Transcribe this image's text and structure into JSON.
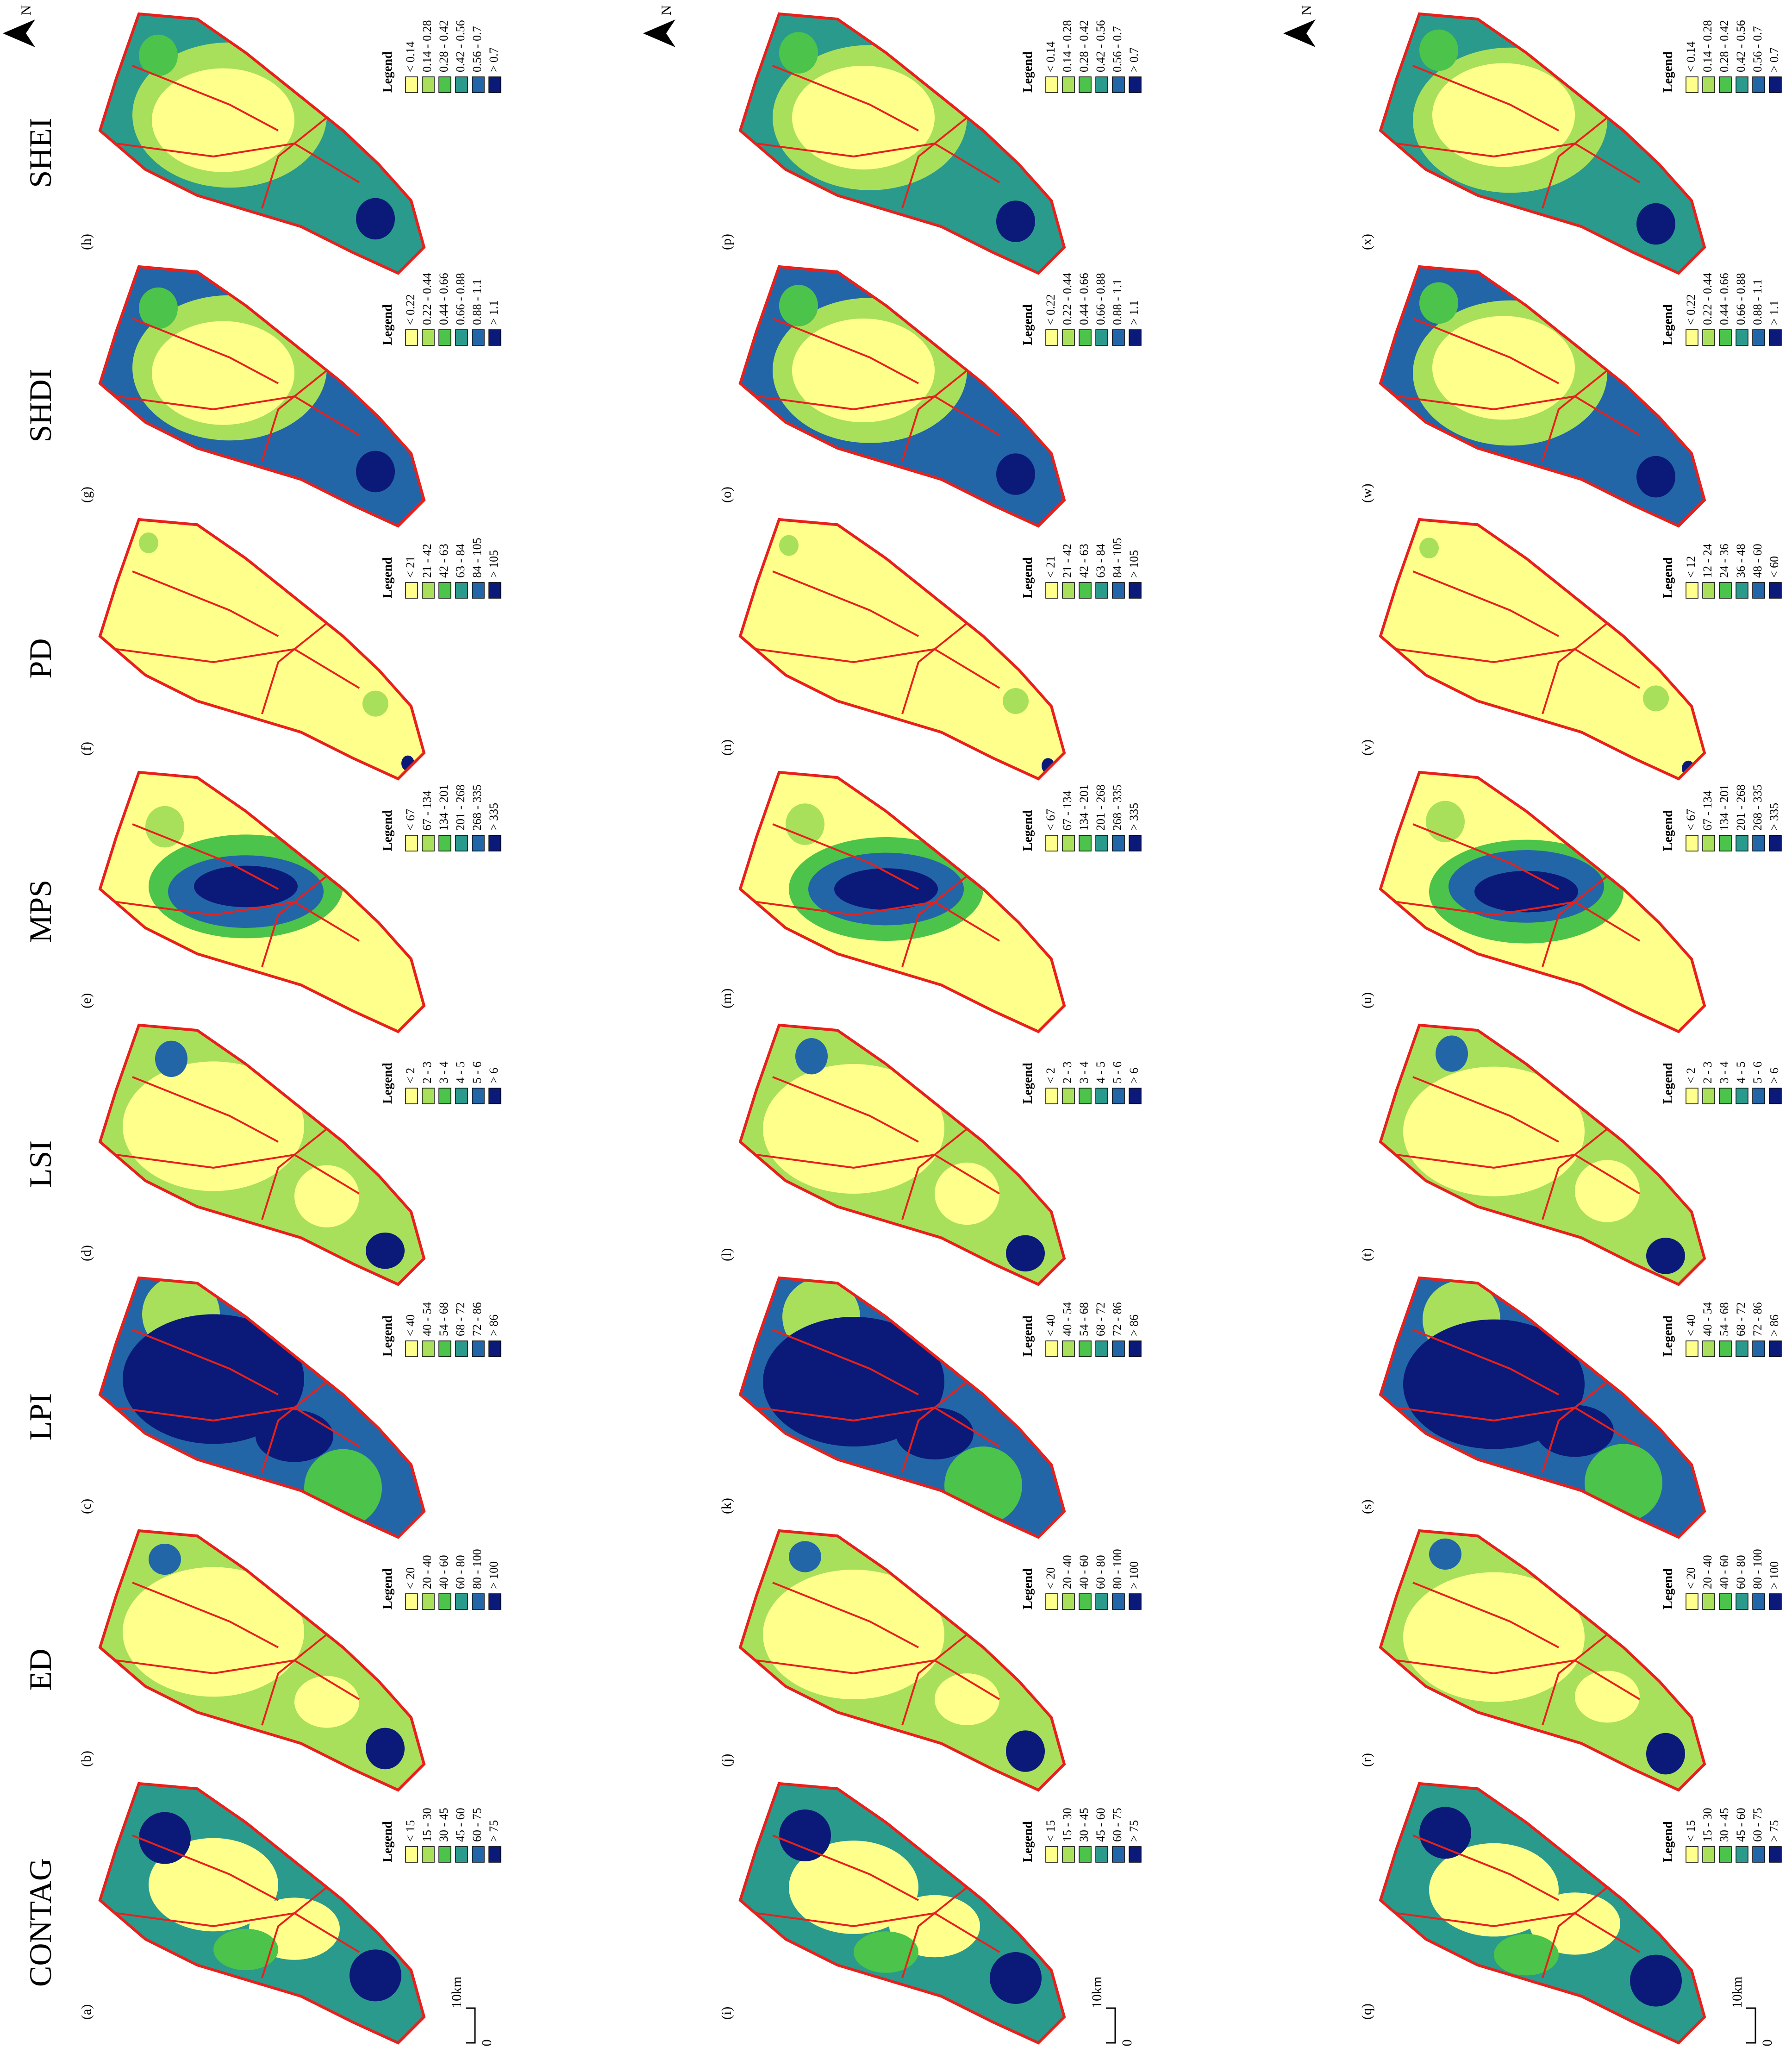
{
  "metrics": [
    "CONTAG",
    "ED",
    "LPI",
    "LSI",
    "MPS",
    "PD",
    "SHDI",
    "SHEI"
  ],
  "north": "N",
  "scale_bar": {
    "start": "0",
    "end": "10km"
  },
  "legend_title": "Legend",
  "legend_colors": [
    "#ffff8c",
    "#a8e05c",
    "#4cc34a",
    "#2a9a8c",
    "#2266a8",
    "#0b1a78"
  ],
  "rows": [
    {
      "panels": [
        {
          "label": "(a)",
          "legend": [
            "< 15",
            "15 - 30",
            "30 - 45",
            "45 - 60",
            "60 - 75",
            "> 75"
          ]
        },
        {
          "label": "(b)",
          "legend": [
            "< 20",
            "20 - 40",
            "40 - 60",
            "60 - 80",
            "80 - 100",
            "> 100"
          ]
        },
        {
          "label": "(c)",
          "legend": [
            "< 40",
            "40 - 54",
            "54 - 68",
            "68 - 72",
            "72 - 86",
            "> 86"
          ]
        },
        {
          "label": "(d)",
          "legend": [
            "< 2",
            "2 - 3",
            "3 - 4",
            "4 - 5",
            "5 - 6",
            "> 6"
          ]
        },
        {
          "label": "(e)",
          "legend": [
            "< 67",
            "67 - 134",
            "134 - 201",
            "201 - 268",
            "268 - 335",
            "> 335"
          ]
        },
        {
          "label": "(f)",
          "legend": [
            "< 21",
            "21 - 42",
            "42 - 63",
            "63 - 84",
            "84 - 105",
            "> 105"
          ]
        },
        {
          "label": "(g)",
          "legend": [
            "< 0.22",
            "0.22 - 0.44",
            "0.44 - 0.66",
            "0.66 - 0.88",
            "0.88 - 1.1",
            "> 1.1"
          ]
        },
        {
          "label": "(h)",
          "legend": [
            "< 0.14",
            "0.14 - 0.28",
            "0.28 - 0.42",
            "0.42 - 0.56",
            "0.56 - 0.7",
            "> 0.7"
          ]
        }
      ]
    },
    {
      "panels": [
        {
          "label": "(i)",
          "legend": [
            "< 15",
            "15 - 30",
            "30 - 45",
            "45 - 60",
            "60 - 75",
            "> 75"
          ]
        },
        {
          "label": "(j)",
          "legend": [
            "< 20",
            "20 - 40",
            "40 - 60",
            "60 - 80",
            "80 - 100",
            "> 100"
          ]
        },
        {
          "label": "(k)",
          "legend": [
            "< 40",
            "40 - 54",
            "54 - 68",
            "68 - 72",
            "72 - 86",
            "> 86"
          ]
        },
        {
          "label": "(l)",
          "legend": [
            "< 2",
            "2 - 3",
            "3 - 4",
            "4 - 5",
            "5 - 6",
            "> 6"
          ]
        },
        {
          "label": "(m)",
          "legend": [
            "< 67",
            "67 - 134",
            "134 - 201",
            "201 - 268",
            "268 - 335",
            "> 335"
          ]
        },
        {
          "label": "(n)",
          "legend": [
            "< 21",
            "21 - 42",
            "42 - 63",
            "63 - 84",
            "84 - 105",
            "> 105"
          ]
        },
        {
          "label": "(o)",
          "legend": [
            "< 0.22",
            "0.22 - 0.44",
            "0.44 - 0.66",
            "0.66 - 0.88",
            "0.88 - 1.1",
            "> 1.1"
          ]
        },
        {
          "label": "(p)",
          "legend": [
            "< 0.14",
            "0.14 - 0.28",
            "0.28 - 0.42",
            "0.42 - 0.56",
            "0.56 - 0.7",
            "> 0.7"
          ]
        }
      ]
    },
    {
      "panels": [
        {
          "label": "(q)",
          "legend": [
            "< 15",
            "15 - 30",
            "30 - 45",
            "45 - 60",
            "60 - 75",
            "> 75"
          ]
        },
        {
          "label": "(r)",
          "legend": [
            "< 20",
            "20 - 40",
            "40 - 60",
            "60 - 80",
            "80 - 100",
            "> 100"
          ]
        },
        {
          "label": "(s)",
          "legend": [
            "< 40",
            "40 - 54",
            "54 - 68",
            "68 - 72",
            "72 - 86",
            "> 86"
          ]
        },
        {
          "label": "(t)",
          "legend": [
            "< 2",
            "2 - 3",
            "3 - 4",
            "4 - 5",
            "5 - 6",
            "> 6"
          ]
        },
        {
          "label": "(u)",
          "legend": [
            "< 67",
            "67 - 134",
            "134 - 201",
            "201 - 268",
            "268 - 335",
            "> 335"
          ]
        },
        {
          "label": "(v)",
          "legend": [
            "< 12",
            "12 - 24",
            "24 - 36",
            "36 - 48",
            "48 - 60",
            "< 60"
          ]
        },
        {
          "label": "(w)",
          "legend": [
            "< 0.22",
            "0.22 - 0.44",
            "0.44 - 0.66",
            "0.66 - 0.88",
            "0.88 - 1.1",
            "> 1.1"
          ]
        },
        {
          "label": "(x)",
          "legend": [
            "< 0.14",
            "0.14 - 0.28",
            "0.28 - 0.42",
            "0.42 - 0.56",
            "0.56 - 0.7",
            "> 0.7"
          ]
        }
      ]
    }
  ]
}
